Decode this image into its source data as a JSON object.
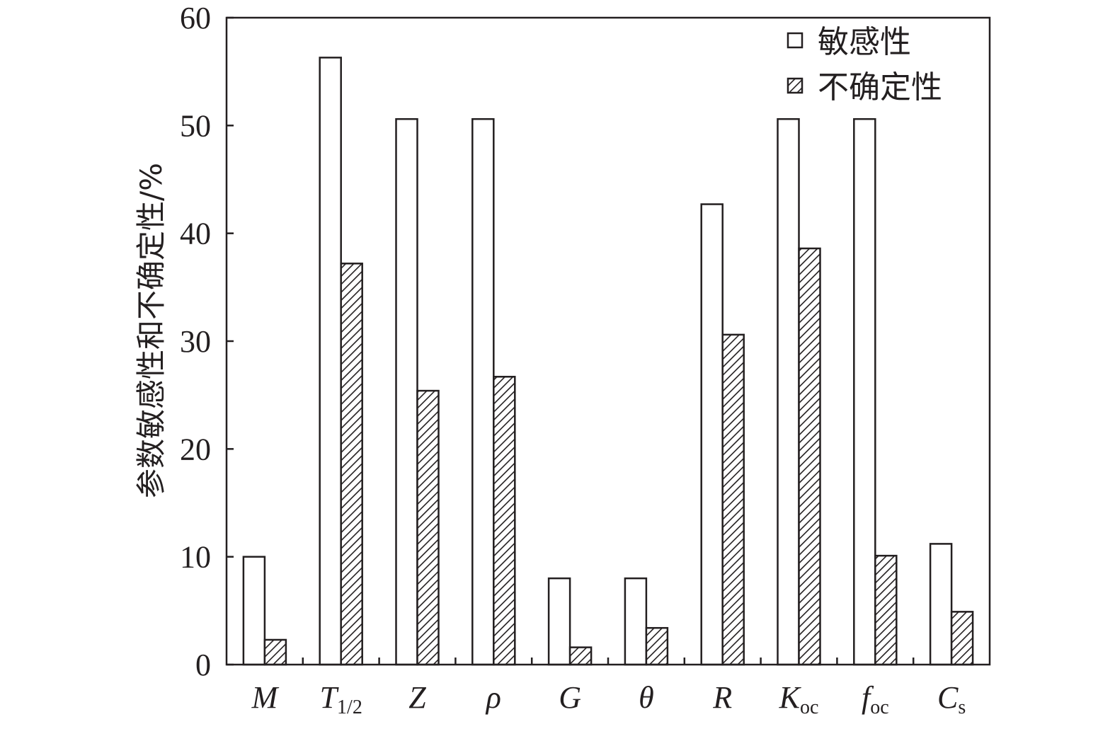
{
  "chart_data": {
    "type": "bar",
    "ylabel": "参数敏感性和不确定性/%",
    "xlabel": "",
    "ylim": [
      0,
      60
    ],
    "yticks": [
      0,
      10,
      20,
      30,
      40,
      50,
      60
    ],
    "categories": [
      {
        "main": "M",
        "sub": ""
      },
      {
        "main": "T",
        "sub": "1/2"
      },
      {
        "main": "Z",
        "sub": ""
      },
      {
        "main": "ρ",
        "sub": ""
      },
      {
        "main": "G",
        "sub": ""
      },
      {
        "main": "θ",
        "sub": ""
      },
      {
        "main": "R",
        "sub": ""
      },
      {
        "main": "K",
        "sub": "oc"
      },
      {
        "main": "f",
        "sub": "oc"
      },
      {
        "main": "C",
        "sub": "s"
      }
    ],
    "series": [
      {
        "name": "敏感性",
        "pattern": "open",
        "values": [
          10,
          56.3,
          50.6,
          50.6,
          8,
          8,
          42.7,
          50.6,
          50.6,
          11.2
        ]
      },
      {
        "name": "不确定性",
        "pattern": "hatched",
        "values": [
          2.3,
          37.2,
          25.4,
          26.7,
          1.6,
          3.4,
          30.6,
          38.6,
          10.1,
          4.9
        ]
      }
    ],
    "legend_position": "top-right",
    "grid": false,
    "colors": {
      "stroke": "#231f20",
      "fill_open": "#ffffff"
    }
  }
}
